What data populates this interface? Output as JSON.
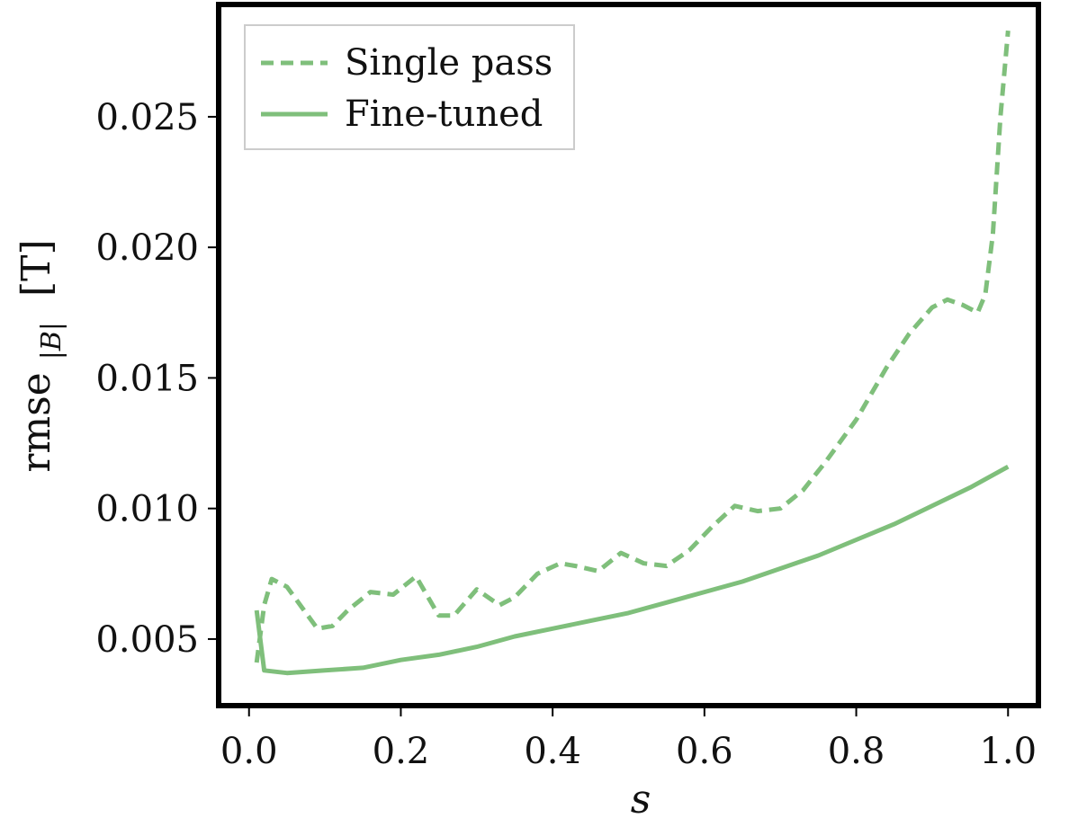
{
  "chart_data": {
    "type": "line",
    "xlabel": "s",
    "ylabel_main": "rmse",
    "ylabel_sub": "|B|",
    "ylabel_unit": "[T]",
    "xlim": [
      -0.04,
      1.04
    ],
    "ylim": [
      0.00245,
      0.0293
    ],
    "x_ticks": [
      0.0,
      0.2,
      0.4,
      0.6,
      0.8,
      1.0
    ],
    "x_tick_labels": [
      "0.0",
      "0.2",
      "0.4",
      "0.6",
      "0.8",
      "1.0"
    ],
    "y_ticks": [
      0.005,
      0.01,
      0.015,
      0.02,
      0.025
    ],
    "y_tick_labels": [
      "0.005",
      "0.010",
      "0.015",
      "0.020",
      "0.025"
    ],
    "grid": false,
    "legend_position": "top-left",
    "series": [
      {
        "name": "Single pass",
        "style": "dashed",
        "color": "#7fbf7b",
        "x": [
          0.01,
          0.02,
          0.03,
          0.05,
          0.07,
          0.09,
          0.11,
          0.13,
          0.16,
          0.19,
          0.22,
          0.25,
          0.27,
          0.3,
          0.33,
          0.35,
          0.38,
          0.41,
          0.43,
          0.46,
          0.49,
          0.52,
          0.55,
          0.58,
          0.61,
          0.64,
          0.67,
          0.7,
          0.73,
          0.76,
          0.8,
          0.84,
          0.87,
          0.9,
          0.92,
          0.94,
          0.96,
          0.97,
          0.98,
          0.99,
          1.0
        ],
        "y": [
          0.0041,
          0.0063,
          0.0073,
          0.007,
          0.0062,
          0.0054,
          0.0055,
          0.0061,
          0.0068,
          0.0067,
          0.0074,
          0.0059,
          0.0059,
          0.0069,
          0.0063,
          0.0066,
          0.0075,
          0.0079,
          0.0078,
          0.0076,
          0.0083,
          0.0079,
          0.0078,
          0.0084,
          0.0093,
          0.0101,
          0.0099,
          0.01,
          0.0107,
          0.0118,
          0.0134,
          0.0154,
          0.0167,
          0.0177,
          0.018,
          0.0178,
          0.0175,
          0.0182,
          0.0205,
          0.025,
          0.0283
        ]
      },
      {
        "name": "Fine-tuned",
        "style": "solid",
        "color": "#7fbf7b",
        "x": [
          0.01,
          0.02,
          0.05,
          0.1,
          0.15,
          0.2,
          0.25,
          0.3,
          0.35,
          0.4,
          0.45,
          0.5,
          0.55,
          0.6,
          0.65,
          0.7,
          0.75,
          0.8,
          0.85,
          0.9,
          0.95,
          1.0
        ],
        "y": [
          0.0061,
          0.0038,
          0.0037,
          0.0038,
          0.0039,
          0.0042,
          0.0044,
          0.0047,
          0.0051,
          0.0054,
          0.0057,
          0.006,
          0.0064,
          0.0068,
          0.0072,
          0.0077,
          0.0082,
          0.0088,
          0.0094,
          0.0101,
          0.0108,
          0.0116
        ]
      }
    ]
  }
}
